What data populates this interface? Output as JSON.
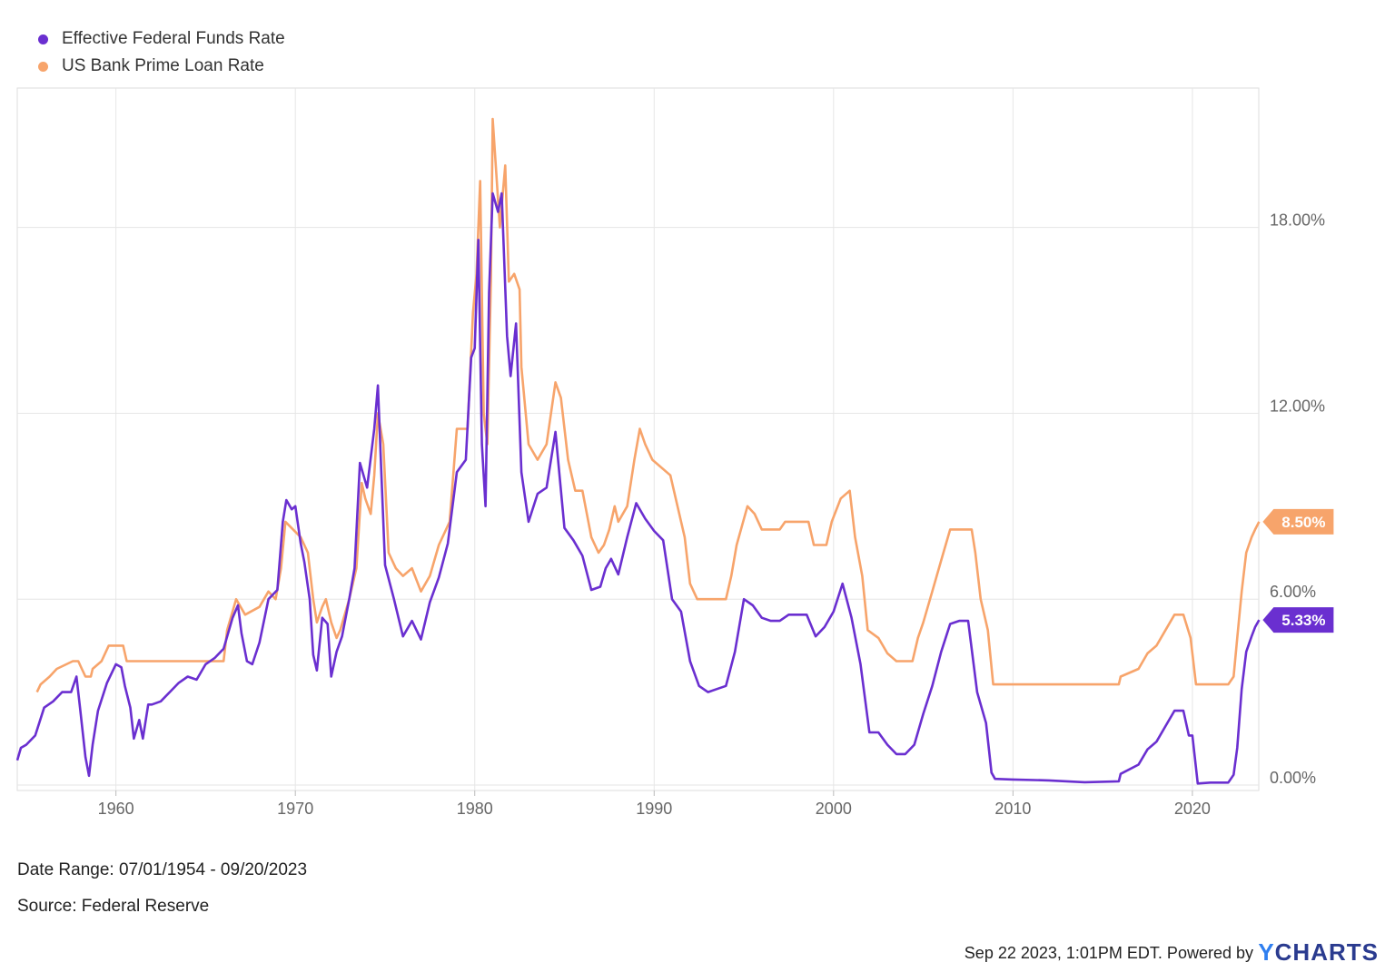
{
  "chart_data": {
    "type": "line",
    "title": "",
    "xlabel": "",
    "ylabel": "",
    "x_ticks": [
      "1960",
      "1970",
      "1980",
      "1990",
      "2000",
      "2010",
      "2020"
    ],
    "y_ticks": [
      "0.00%",
      "6.00%",
      "12.00%",
      "18.00%"
    ],
    "ylim": [
      0,
      22.5
    ],
    "xlim": [
      1954.5,
      2023.7
    ],
    "grid": true,
    "legend_position": "top-left",
    "series": [
      {
        "name": "Effective Federal Funds Rate",
        "color": "#6a2fd0",
        "last_value_label": "5.33%",
        "points": [
          [
            1954.5,
            0.8
          ],
          [
            1954.7,
            1.2
          ],
          [
            1955.0,
            1.3
          ],
          [
            1955.5,
            1.6
          ],
          [
            1956.0,
            2.5
          ],
          [
            1956.5,
            2.7
          ],
          [
            1957.0,
            3.0
          ],
          [
            1957.5,
            3.0
          ],
          [
            1957.8,
            3.5
          ],
          [
            1958.0,
            2.5
          ],
          [
            1958.3,
            0.9
          ],
          [
            1958.5,
            0.3
          ],
          [
            1958.7,
            1.3
          ],
          [
            1959.0,
            2.4
          ],
          [
            1959.5,
            3.3
          ],
          [
            1960.0,
            3.9
          ],
          [
            1960.3,
            3.8
          ],
          [
            1960.5,
            3.2
          ],
          [
            1960.8,
            2.5
          ],
          [
            1961.0,
            1.5
          ],
          [
            1961.3,
            2.1
          ],
          [
            1961.5,
            1.5
          ],
          [
            1961.8,
            2.6
          ],
          [
            1962.0,
            2.6
          ],
          [
            1962.5,
            2.7
          ],
          [
            1963.0,
            3.0
          ],
          [
            1963.5,
            3.3
          ],
          [
            1964.0,
            3.5
          ],
          [
            1964.5,
            3.4
          ],
          [
            1965.0,
            3.9
          ],
          [
            1965.5,
            4.1
          ],
          [
            1966.0,
            4.4
          ],
          [
            1966.5,
            5.4
          ],
          [
            1966.8,
            5.8
          ],
          [
            1967.0,
            4.9
          ],
          [
            1967.3,
            4.0
          ],
          [
            1967.6,
            3.9
          ],
          [
            1968.0,
            4.6
          ],
          [
            1968.5,
            6.0
          ],
          [
            1969.0,
            6.3
          ],
          [
            1969.3,
            8.5
          ],
          [
            1969.5,
            9.2
          ],
          [
            1969.8,
            8.9
          ],
          [
            1970.0,
            9.0
          ],
          [
            1970.3,
            7.8
          ],
          [
            1970.5,
            7.2
          ],
          [
            1970.8,
            6.0
          ],
          [
            1971.0,
            4.2
          ],
          [
            1971.2,
            3.7
          ],
          [
            1971.5,
            5.4
          ],
          [
            1971.8,
            5.2
          ],
          [
            1972.0,
            3.5
          ],
          [
            1972.3,
            4.3
          ],
          [
            1972.6,
            4.8
          ],
          [
            1973.0,
            6.0
          ],
          [
            1973.3,
            7.0
          ],
          [
            1973.6,
            10.4
          ],
          [
            1974.0,
            9.6
          ],
          [
            1974.4,
            11.5
          ],
          [
            1974.6,
            12.9
          ],
          [
            1974.8,
            10.0
          ],
          [
            1975.0,
            7.1
          ],
          [
            1975.5,
            6.0
          ],
          [
            1976.0,
            4.8
          ],
          [
            1976.5,
            5.3
          ],
          [
            1977.0,
            4.7
          ],
          [
            1977.5,
            5.9
          ],
          [
            1978.0,
            6.7
          ],
          [
            1978.5,
            7.8
          ],
          [
            1979.0,
            10.1
          ],
          [
            1979.5,
            10.5
          ],
          [
            1979.8,
            13.8
          ],
          [
            1980.0,
            14.1
          ],
          [
            1980.2,
            17.6
          ],
          [
            1980.4,
            11.0
          ],
          [
            1980.6,
            9.0
          ],
          [
            1980.8,
            15.9
          ],
          [
            1981.0,
            19.1
          ],
          [
            1981.3,
            18.5
          ],
          [
            1981.5,
            19.1
          ],
          [
            1981.8,
            14.5
          ],
          [
            1982.0,
            13.2
          ],
          [
            1982.3,
            14.9
          ],
          [
            1982.6,
            10.1
          ],
          [
            1983.0,
            8.5
          ],
          [
            1983.5,
            9.4
          ],
          [
            1984.0,
            9.6
          ],
          [
            1984.5,
            11.4
          ],
          [
            1985.0,
            8.3
          ],
          [
            1985.5,
            7.9
          ],
          [
            1986.0,
            7.4
          ],
          [
            1986.5,
            6.3
          ],
          [
            1987.0,
            6.4
          ],
          [
            1987.3,
            7.0
          ],
          [
            1987.6,
            7.3
          ],
          [
            1988.0,
            6.8
          ],
          [
            1988.5,
            8.0
          ],
          [
            1989.0,
            9.1
          ],
          [
            1989.5,
            8.6
          ],
          [
            1990.0,
            8.2
          ],
          [
            1990.5,
            7.9
          ],
          [
            1991.0,
            6.0
          ],
          [
            1991.5,
            5.6
          ],
          [
            1992.0,
            4.0
          ],
          [
            1992.5,
            3.2
          ],
          [
            1993.0,
            3.0
          ],
          [
            1993.5,
            3.1
          ],
          [
            1994.0,
            3.2
          ],
          [
            1994.5,
            4.3
          ],
          [
            1995.0,
            6.0
          ],
          [
            1995.5,
            5.8
          ],
          [
            1996.0,
            5.4
          ],
          [
            1996.5,
            5.3
          ],
          [
            1997.0,
            5.3
          ],
          [
            1997.5,
            5.5
          ],
          [
            1998.0,
            5.5
          ],
          [
            1998.5,
            5.5
          ],
          [
            1999.0,
            4.8
          ],
          [
            1999.5,
            5.1
          ],
          [
            2000.0,
            5.6
          ],
          [
            2000.5,
            6.5
          ],
          [
            2001.0,
            5.4
          ],
          [
            2001.5,
            3.9
          ],
          [
            2002.0,
            1.7
          ],
          [
            2002.5,
            1.7
          ],
          [
            2003.0,
            1.3
          ],
          [
            2003.5,
            1.0
          ],
          [
            2004.0,
            1.0
          ],
          [
            2004.5,
            1.3
          ],
          [
            2005.0,
            2.3
          ],
          [
            2005.5,
            3.2
          ],
          [
            2006.0,
            4.3
          ],
          [
            2006.5,
            5.2
          ],
          [
            2007.0,
            5.3
          ],
          [
            2007.5,
            5.3
          ],
          [
            2008.0,
            3.0
          ],
          [
            2008.5,
            2.0
          ],
          [
            2008.8,
            0.4
          ],
          [
            2009.0,
            0.2
          ],
          [
            2010.0,
            0.18
          ],
          [
            2012.0,
            0.15
          ],
          [
            2014.0,
            0.09
          ],
          [
            2015.9,
            0.12
          ],
          [
            2016.0,
            0.36
          ],
          [
            2017.0,
            0.66
          ],
          [
            2017.5,
            1.15
          ],
          [
            2018.0,
            1.4
          ],
          [
            2018.5,
            1.9
          ],
          [
            2019.0,
            2.4
          ],
          [
            2019.5,
            2.4
          ],
          [
            2019.8,
            1.6
          ],
          [
            2020.0,
            1.6
          ],
          [
            2020.3,
            0.05
          ],
          [
            2021.0,
            0.08
          ],
          [
            2022.0,
            0.08
          ],
          [
            2022.3,
            0.33
          ],
          [
            2022.5,
            1.2
          ],
          [
            2022.75,
            3.1
          ],
          [
            2023.0,
            4.3
          ],
          [
            2023.3,
            4.8
          ],
          [
            2023.5,
            5.1
          ],
          [
            2023.72,
            5.33
          ]
        ]
      },
      {
        "name": "US Bank Prime Loan Rate",
        "color": "#f7a46b",
        "last_value_label": "8.50%",
        "points": [
          [
            1955.6,
            3.0
          ],
          [
            1955.8,
            3.25
          ],
          [
            1956.3,
            3.5
          ],
          [
            1956.7,
            3.75
          ],
          [
            1957.6,
            4.0
          ],
          [
            1957.9,
            4.0
          ],
          [
            1958.1,
            3.75
          ],
          [
            1958.3,
            3.5
          ],
          [
            1958.6,
            3.5
          ],
          [
            1958.7,
            3.75
          ],
          [
            1959.2,
            4.0
          ],
          [
            1959.6,
            4.5
          ],
          [
            1960.0,
            4.5
          ],
          [
            1960.4,
            4.5
          ],
          [
            1960.6,
            4.0
          ],
          [
            1966.0,
            4.0
          ],
          [
            1966.2,
            5.0
          ],
          [
            1966.7,
            6.0
          ],
          [
            1967.2,
            5.5
          ],
          [
            1968.0,
            5.75
          ],
          [
            1968.5,
            6.25
          ],
          [
            1968.9,
            6.0
          ],
          [
            1969.2,
            7.0
          ],
          [
            1969.45,
            8.5
          ],
          [
            1970.3,
            8.0
          ],
          [
            1970.7,
            7.5
          ],
          [
            1971.0,
            6.0
          ],
          [
            1971.2,
            5.25
          ],
          [
            1971.5,
            5.75
          ],
          [
            1971.7,
            6.0
          ],
          [
            1972.0,
            5.25
          ],
          [
            1972.3,
            4.75
          ],
          [
            1972.5,
            5.0
          ],
          [
            1973.0,
            6.0
          ],
          [
            1973.4,
            7.0
          ],
          [
            1973.7,
            9.75
          ],
          [
            1973.9,
            9.25
          ],
          [
            1974.2,
            8.75
          ],
          [
            1974.4,
            10.0
          ],
          [
            1974.6,
            12.0
          ],
          [
            1974.9,
            11.0
          ],
          [
            1975.2,
            7.5
          ],
          [
            1975.6,
            7.0
          ],
          [
            1976.0,
            6.75
          ],
          [
            1976.5,
            7.0
          ],
          [
            1977.0,
            6.25
          ],
          [
            1977.5,
            6.75
          ],
          [
            1978.0,
            7.75
          ],
          [
            1978.6,
            8.5
          ],
          [
            1979.0,
            11.5
          ],
          [
            1979.6,
            11.5
          ],
          [
            1979.9,
            15.25
          ],
          [
            1980.1,
            16.5
          ],
          [
            1980.3,
            19.5
          ],
          [
            1980.5,
            12.0
          ],
          [
            1980.7,
            11.0
          ],
          [
            1980.9,
            16.25
          ],
          [
            1981.0,
            21.5
          ],
          [
            1981.4,
            18.0
          ],
          [
            1981.7,
            20.0
          ],
          [
            1981.9,
            16.25
          ],
          [
            1982.2,
            16.5
          ],
          [
            1982.5,
            16.0
          ],
          [
            1982.6,
            13.5
          ],
          [
            1983.0,
            11.0
          ],
          [
            1983.5,
            10.5
          ],
          [
            1984.0,
            11.0
          ],
          [
            1984.5,
            13.0
          ],
          [
            1984.8,
            12.5
          ],
          [
            1985.2,
            10.5
          ],
          [
            1985.6,
            9.5
          ],
          [
            1986.0,
            9.5
          ],
          [
            1986.5,
            8.0
          ],
          [
            1986.9,
            7.5
          ],
          [
            1987.2,
            7.75
          ],
          [
            1987.5,
            8.25
          ],
          [
            1987.8,
            9.0
          ],
          [
            1988.0,
            8.5
          ],
          [
            1988.5,
            9.0
          ],
          [
            1988.9,
            10.5
          ],
          [
            1989.2,
            11.5
          ],
          [
            1989.5,
            11.0
          ],
          [
            1989.9,
            10.5
          ],
          [
            1990.9,
            10.0
          ],
          [
            1991.3,
            9.0
          ],
          [
            1991.7,
            8.0
          ],
          [
            1992.0,
            6.5
          ],
          [
            1992.4,
            6.0
          ],
          [
            1993.0,
            6.0
          ],
          [
            1994.0,
            6.0
          ],
          [
            1994.3,
            6.75
          ],
          [
            1994.6,
            7.75
          ],
          [
            1995.2,
            9.0
          ],
          [
            1995.6,
            8.75
          ],
          [
            1996.0,
            8.25
          ],
          [
            1997.0,
            8.25
          ],
          [
            1997.3,
            8.5
          ],
          [
            1998.0,
            8.5
          ],
          [
            1998.6,
            8.5
          ],
          [
            1998.9,
            7.75
          ],
          [
            1999.6,
            7.75
          ],
          [
            1999.9,
            8.5
          ],
          [
            2000.4,
            9.25
          ],
          [
            2000.9,
            9.5
          ],
          [
            2001.2,
            8.0
          ],
          [
            2001.6,
            6.75
          ],
          [
            2001.9,
            5.0
          ],
          [
            2002.5,
            4.75
          ],
          [
            2003.0,
            4.25
          ],
          [
            2003.5,
            4.0
          ],
          [
            2004.4,
            4.0
          ],
          [
            2004.7,
            4.75
          ],
          [
            2005.0,
            5.25
          ],
          [
            2005.5,
            6.25
          ],
          [
            2006.0,
            7.25
          ],
          [
            2006.5,
            8.25
          ],
          [
            2007.7,
            8.25
          ],
          [
            2007.9,
            7.5
          ],
          [
            2008.2,
            6.0
          ],
          [
            2008.6,
            5.0
          ],
          [
            2008.9,
            3.25
          ],
          [
            2015.9,
            3.25
          ],
          [
            2016.0,
            3.5
          ],
          [
            2017.0,
            3.75
          ],
          [
            2017.5,
            4.25
          ],
          [
            2018.0,
            4.5
          ],
          [
            2018.5,
            5.0
          ],
          [
            2019.0,
            5.5
          ],
          [
            2019.5,
            5.5
          ],
          [
            2019.9,
            4.75
          ],
          [
            2020.2,
            3.25
          ],
          [
            2022.0,
            3.25
          ],
          [
            2022.3,
            3.5
          ],
          [
            2022.5,
            4.75
          ],
          [
            2022.75,
            6.25
          ],
          [
            2023.0,
            7.5
          ],
          [
            2023.3,
            8.0
          ],
          [
            2023.5,
            8.25
          ],
          [
            2023.72,
            8.5
          ]
        ]
      }
    ]
  },
  "footer": {
    "date_range": "Date Range: 07/01/1954 - 09/20/2023",
    "source": "Source: Federal Reserve",
    "timestamp": "Sep 22 2023, 1:01PM EDT. Powered by",
    "brand_y": "Y",
    "brand_rest": "CHARTS"
  }
}
